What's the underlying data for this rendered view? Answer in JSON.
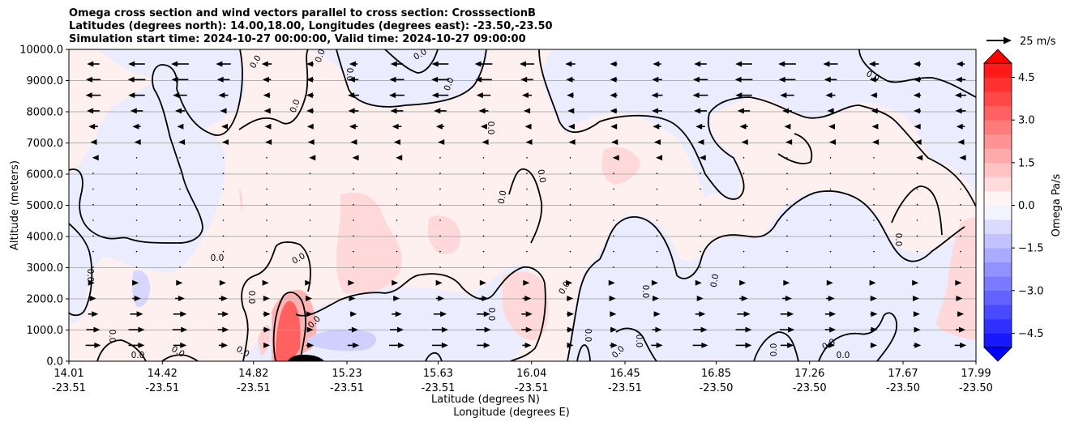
{
  "title_lines": [
    "Omega cross section and wind vectors parallel to cross section: CrosssectionB",
    "Latitudes (degrees north): 14.00,18.00, Longitudes (degrees east): -23.50,-23.50",
    "Simulation start time: 2024-10-27 00:00:00, Valid time: 2024-10-27 09:00:00"
  ],
  "chart_data": {
    "type": "heatmap",
    "title": "Omega cross section and wind vectors parallel to cross section: CrosssectionB",
    "ylabel": "Altitude (meters)",
    "xlabel_lines": [
      "Latitude (degrees N)",
      "Longitude (degrees E)"
    ],
    "ylim": [
      0,
      10000
    ],
    "y_ticks": [
      "0.0",
      "1000.0",
      "2000.0",
      "3000.0",
      "4000.0",
      "5000.0",
      "6000.0",
      "7000.0",
      "8000.0",
      "9000.0",
      "10000.0"
    ],
    "x_ticks": [
      {
        "lat": "14.01",
        "lon": "-23.51"
      },
      {
        "lat": "14.42",
        "lon": "-23.51"
      },
      {
        "lat": "14.82",
        "lon": "-23.51"
      },
      {
        "lat": "15.23",
        "lon": "-23.51"
      },
      {
        "lat": "15.63",
        "lon": "-23.51"
      },
      {
        "lat": "16.04",
        "lon": "-23.51"
      },
      {
        "lat": "16.45",
        "lon": "-23.51"
      },
      {
        "lat": "16.85",
        "lon": "-23.50"
      },
      {
        "lat": "17.26",
        "lon": "-23.50"
      },
      {
        "lat": "17.67",
        "lon": "-23.50"
      },
      {
        "lat": "17.99",
        "lon": "-23.50"
      }
    ],
    "grid": "horizontal",
    "contour_label": "0.0",
    "colorbar": {
      "label": "Omega Pa/s",
      "range": [
        -5,
        5
      ],
      "ticks": [
        "4.5",
        "3.0",
        "1.5",
        "0.0",
        "−1.5",
        "−3.0",
        "−4.5"
      ],
      "cmap": "bwr",
      "low_color": "#0000ff",
      "high_color": "#ff0000"
    },
    "quiver_key": "25 m/s",
    "regions": [
      {
        "sign": "negative",
        "lat_range": [
          14.01,
          14.55
        ],
        "alt_range": [
          2000,
          6000
        ]
      },
      {
        "sign": "negative",
        "lat_range": [
          14.1,
          15.3
        ],
        "alt_range": [
          8500,
          10000
        ]
      },
      {
        "sign": "negative",
        "lat_range": [
          15.2,
          16.0
        ],
        "alt_range": [
          8300,
          10000
        ]
      },
      {
        "sign": "negative",
        "lat_range": [
          16.1,
          17.99
        ],
        "alt_range": [
          6000,
          10000
        ]
      },
      {
        "sign": "negative",
        "lat_range": [
          15.0,
          16.4
        ],
        "alt_range": [
          0,
          2200
        ]
      },
      {
        "sign": "negative",
        "lat_range": [
          16.55,
          17.99
        ],
        "alt_range": [
          0,
          4600
        ]
      },
      {
        "sign": "positive",
        "lat_range": [
          14.95,
          15.1
        ],
        "alt_range": [
          0,
          2100
        ]
      },
      {
        "sign": "positive",
        "lat_range": [
          15.1,
          15.55
        ],
        "alt_range": [
          2100,
          5200
        ]
      },
      {
        "sign": "positive",
        "lat_range": [
          15.85,
          16.1
        ],
        "alt_range": [
          700,
          2900
        ]
      },
      {
        "sign": "positive",
        "lat_range": [
          16.25,
          16.5
        ],
        "alt_range": [
          5200,
          6700
        ]
      },
      {
        "sign": "positive",
        "lat_range": [
          17.8,
          17.99
        ],
        "alt_range": [
          1000,
          4700
        ]
      }
    ],
    "wind": "westward (arrows pointing left) above ~6000 m, eastward (arrows pointing right) below ~3500 m"
  }
}
